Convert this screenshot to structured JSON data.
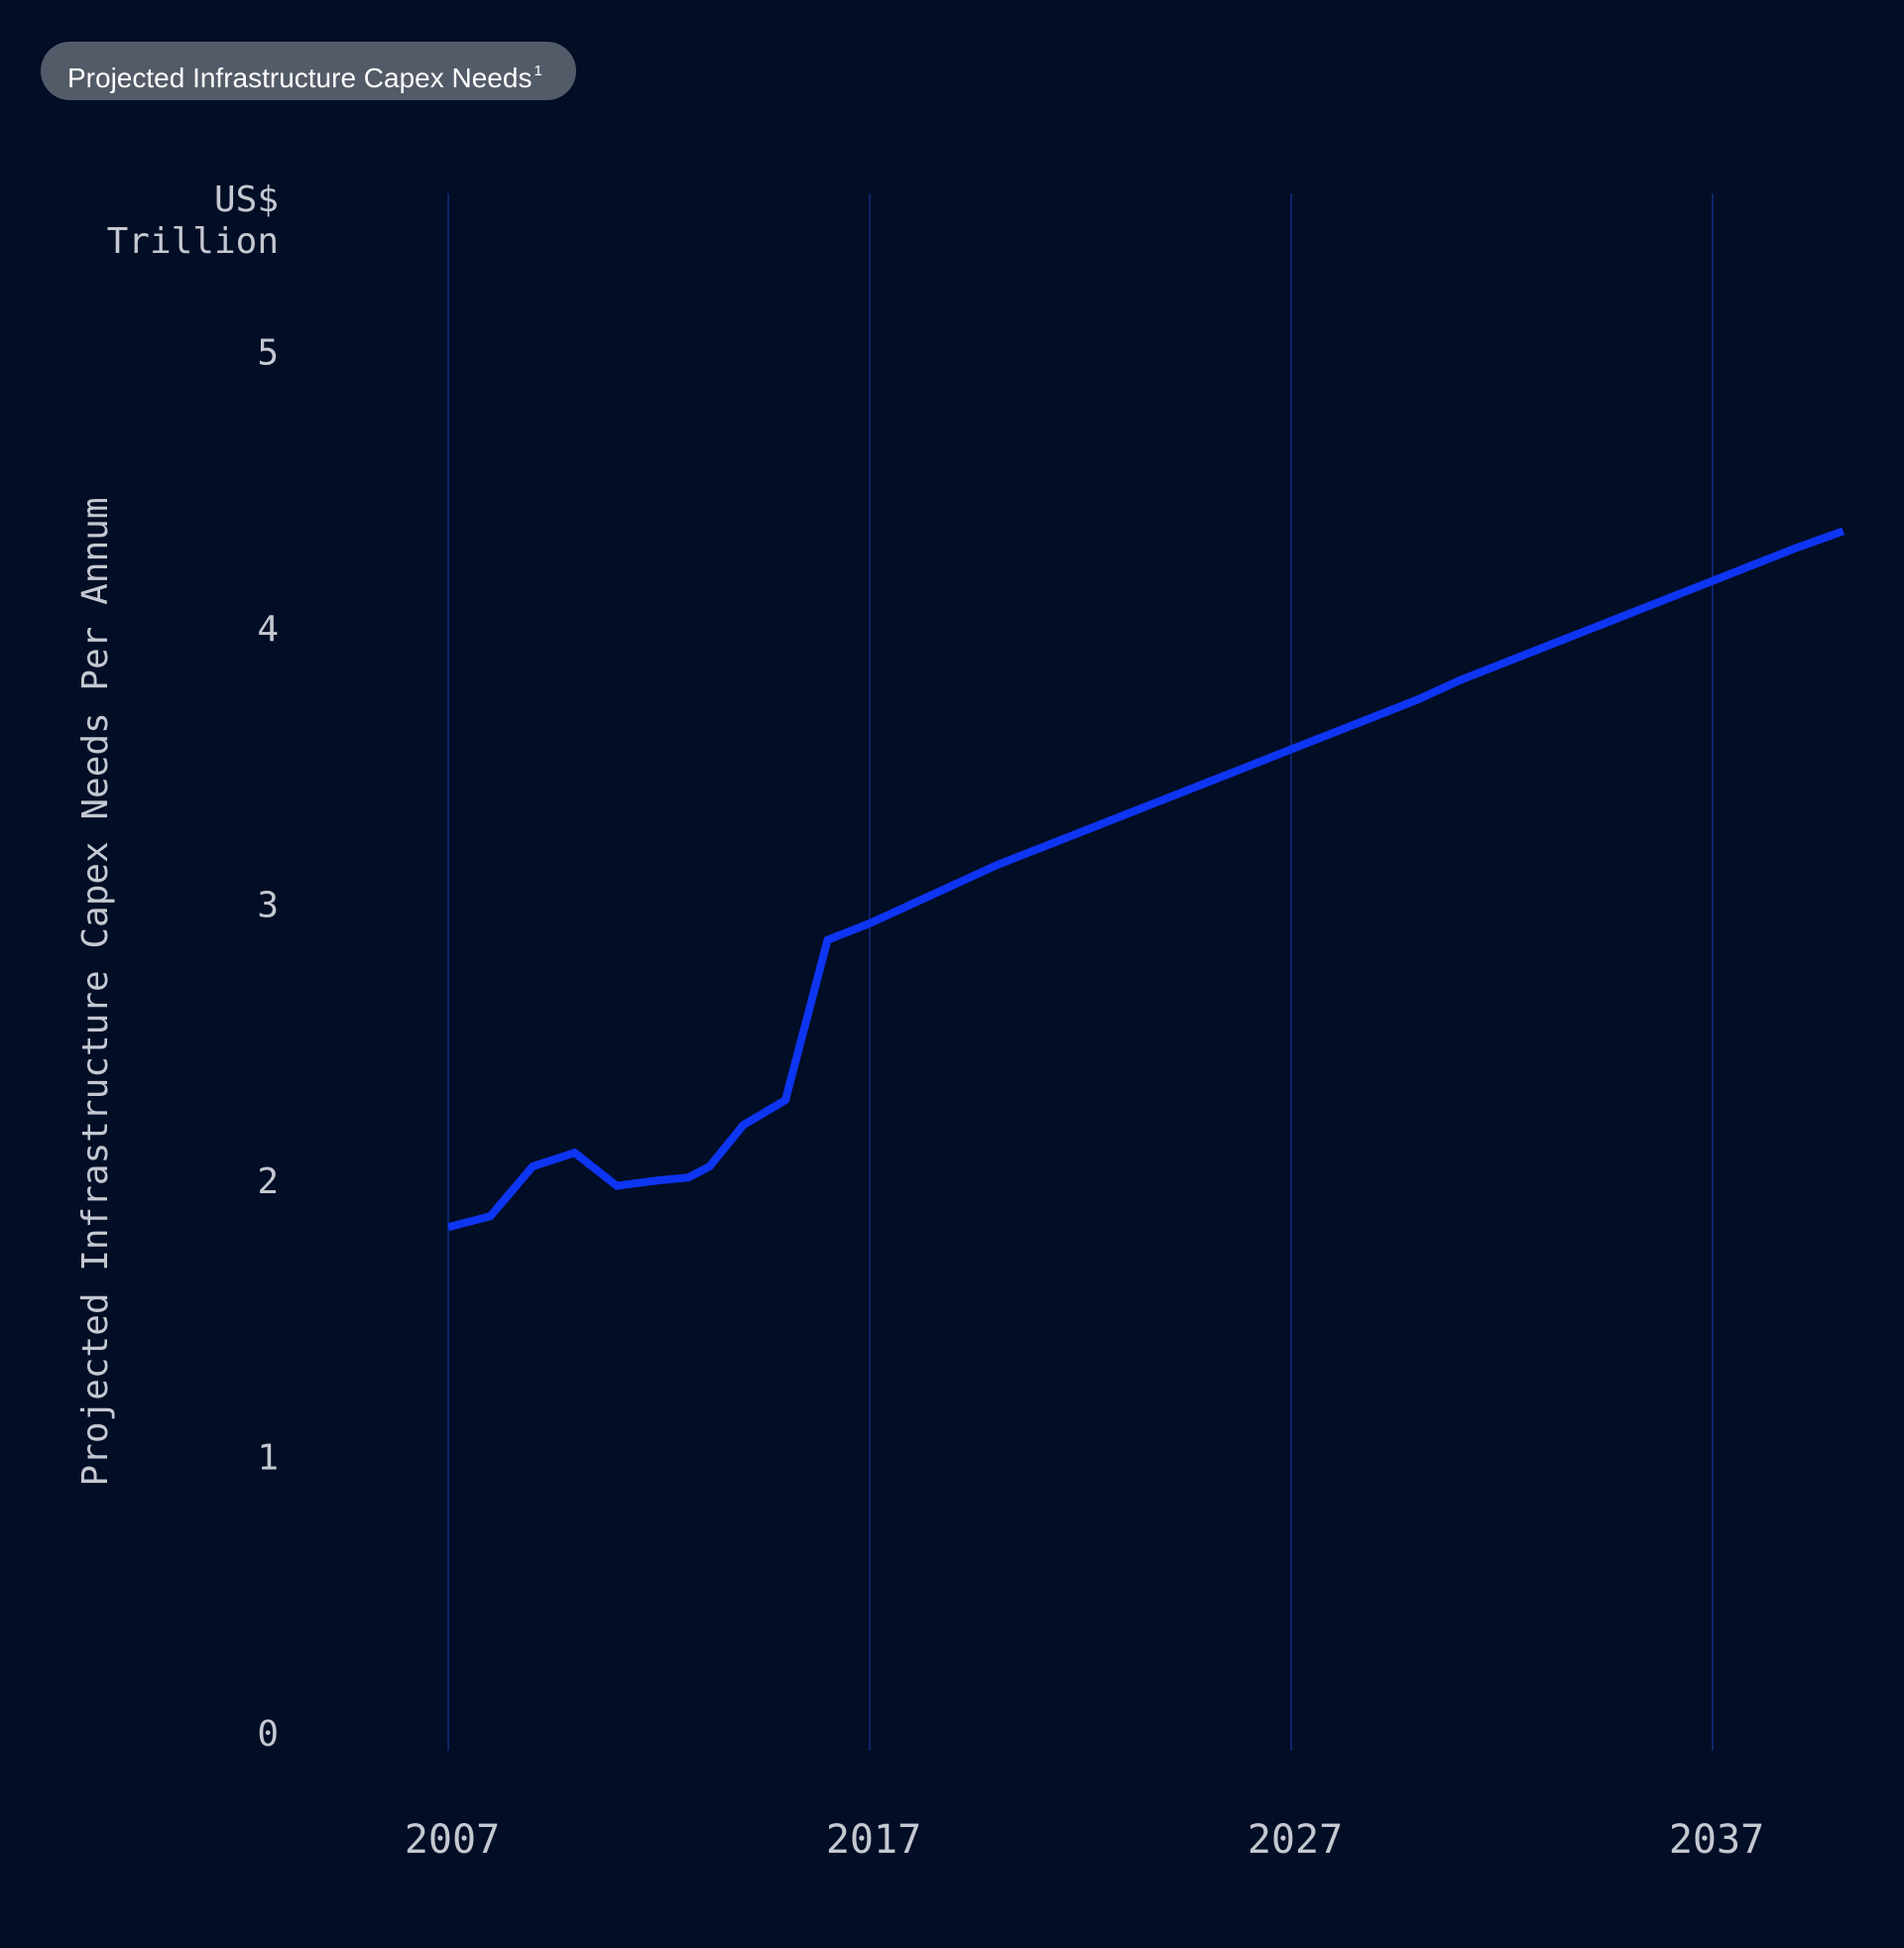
{
  "header": {
    "title": "Projected Infrastructure Capex Needs",
    "footnote_mark": "1"
  },
  "colors": {
    "background": "#020d26",
    "pill": "#535b68",
    "line": "#0d35f2",
    "grid": "#0c2468",
    "text": "#c4c8d0"
  },
  "chart_data": {
    "type": "line",
    "title": "Projected Infrastructure Capex Needs",
    "ylabel": "Projected Infrastructure Capex Needs Per Annum",
    "yunit": [
      "US$",
      "Trillion"
    ],
    "xlabel": "",
    "xlim": [
      2007,
      2040.2
    ],
    "ylim": [
      0,
      5.6
    ],
    "yticks": [
      0,
      1,
      2,
      3,
      4,
      5
    ],
    "xticks": [
      2007,
      2017,
      2027,
      2037
    ],
    "grid": "vertical",
    "legend": "none",
    "series": [
      {
        "x": [
          2007,
          2008,
          2009,
          2010,
          2011,
          2012,
          2012.7,
          2013.2,
          2014,
          2015,
          2016,
          2017,
          2018,
          2019,
          2020,
          2021,
          2022,
          2023,
          2024,
          2025,
          2026,
          2027,
          2028,
          2029,
          2030,
          2031,
          2032,
          2033,
          2034,
          2035,
          2036,
          2037,
          2038,
          2039,
          2040.1
        ],
        "y": [
          1.83,
          1.87,
          2.05,
          2.1,
          1.98,
          2.0,
          2.01,
          2.05,
          2.2,
          2.29,
          2.87,
          2.93,
          3.0,
          3.07,
          3.14,
          3.2,
          3.26,
          3.32,
          3.38,
          3.44,
          3.5,
          3.56,
          3.62,
          3.68,
          3.74,
          3.81,
          3.87,
          3.93,
          3.99,
          4.05,
          4.11,
          4.17,
          4.23,
          4.29,
          4.35
        ]
      }
    ]
  }
}
